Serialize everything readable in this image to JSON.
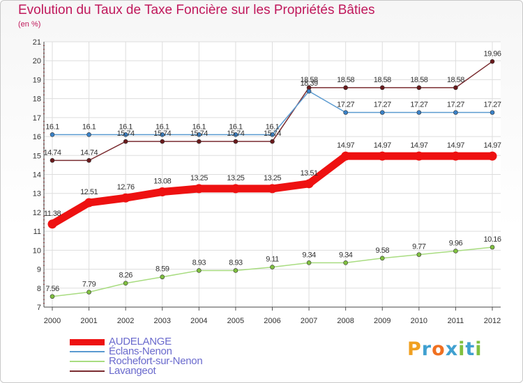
{
  "header": {
    "title": "Evolution du Taux de Taxe Foncière sur les Propriétés Bâties",
    "subtitle": "(en %)"
  },
  "brand": {
    "text": "Proxiti",
    "letters": [
      "P",
      "r",
      "o",
      "x",
      "i",
      "t",
      "i"
    ],
    "colors": [
      "#f0a020",
      "#40a0d0",
      "#f07020",
      "#40a0d0",
      "#80c040",
      "#40a0d0",
      "#80c040"
    ]
  },
  "chart_data": {
    "type": "line",
    "title": "Evolution du Taux de Taxe Foncière sur les Propriétés Bâties",
    "ylabel": "(en %)",
    "xlabel": "",
    "x": [
      "2000",
      "2001",
      "2002",
      "2003",
      "2004",
      "2005",
      "2006",
      "2007",
      "2008",
      "2009",
      "2010",
      "2011",
      "2012"
    ],
    "ylim": [
      7,
      21
    ],
    "yticks": [
      "7",
      "8",
      "9",
      "10",
      "11",
      "12",
      "13",
      "14",
      "15",
      "16",
      "17",
      "18",
      "19",
      "20",
      "21"
    ],
    "grid": true,
    "legend_position": "bottom-left",
    "series": [
      {
        "name": "AUDELANGE",
        "color": "#ee1111",
        "bold": true,
        "values": [
          11.38,
          12.51,
          12.76,
          13.08,
          13.25,
          13.25,
          13.25,
          13.51,
          14.97,
          14.97,
          14.97,
          14.97,
          14.97
        ],
        "labels": [
          "11.38",
          "12.51",
          "12.76",
          "13.08",
          "13.25",
          "13.25",
          "13.25",
          "13.51",
          "14.97",
          "14.97",
          "14.97",
          "14.97",
          "14.97"
        ]
      },
      {
        "name": "Éclans-Nenon",
        "color": "#5a9ad0",
        "marker": "#3a82c8",
        "bold": false,
        "values": [
          16.1,
          16.1,
          16.1,
          16.1,
          16.1,
          16.1,
          16.1,
          18.39,
          17.27,
          17.27,
          17.27,
          17.27,
          17.27
        ],
        "labels": [
          "16.1",
          "16.1",
          "16.1",
          "16.1",
          "16.1",
          "16.1",
          "16.1",
          "18.39",
          "17.27",
          "17.27",
          "17.27",
          "17.27",
          "17.27"
        ]
      },
      {
        "name": "Rochefort-sur-Nenon",
        "color": "#a8dc80",
        "marker": "#80c040",
        "bold": false,
        "values": [
          7.56,
          7.79,
          8.26,
          8.59,
          8.93,
          8.93,
          9.11,
          9.34,
          9.34,
          9.58,
          9.77,
          9.96,
          10.16
        ],
        "labels": [
          "7.56",
          "7.79",
          "8.26",
          "8.59",
          "8.93",
          "8.93",
          "9.11",
          "9.34",
          "9.34",
          "9.58",
          "9.77",
          "9.96",
          "10.16"
        ]
      },
      {
        "name": "Lavangeot",
        "color": "#7a2c30",
        "marker": "#6a1a1c",
        "bold": false,
        "values": [
          14.74,
          14.74,
          15.74,
          15.74,
          15.74,
          15.74,
          15.74,
          18.58,
          18.58,
          18.58,
          18.58,
          18.58,
          19.96
        ],
        "labels": [
          "14.74",
          "14.74",
          "15.74",
          "15.74",
          "15.74",
          "15.74",
          "15.74",
          "18.58",
          "18.58",
          "18.58",
          "18.58",
          "18.58",
          "19.96"
        ]
      }
    ]
  }
}
